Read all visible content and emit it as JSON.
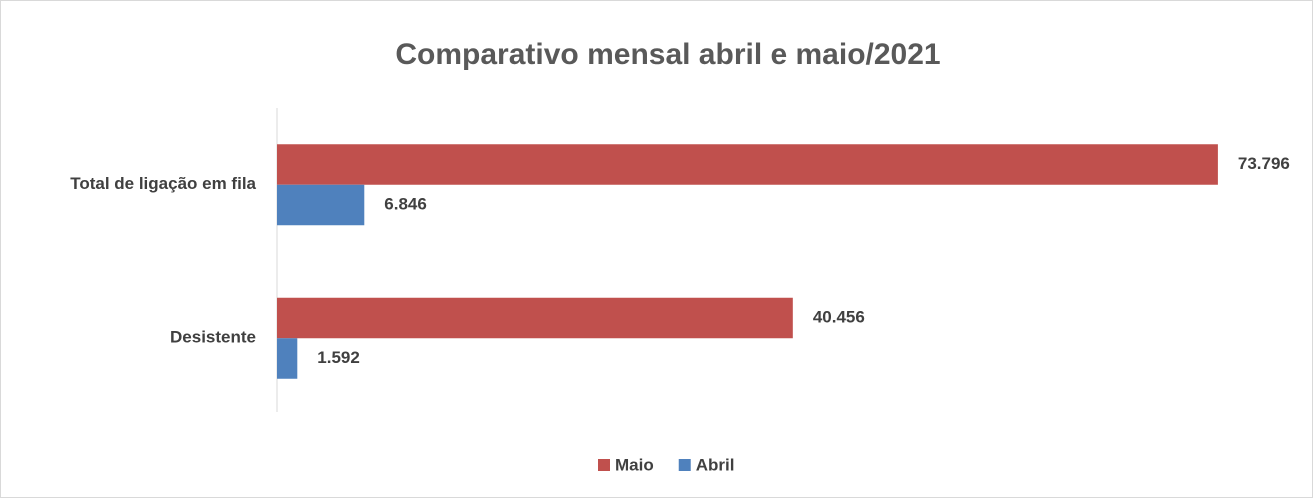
{
  "chart_data": {
    "type": "hbar",
    "title": "Comparativo mensal abril e maio/2021",
    "categories": [
      "Total de ligação em fila",
      "Desistente"
    ],
    "series": [
      {
        "name": "Maio",
        "color": "#c0504d",
        "values": [
          73796,
          40456
        ],
        "value_labels": [
          "73.796",
          "40.456"
        ]
      },
      {
        "name": "Abril",
        "color": "#4f81bd",
        "values": [
          6846,
          1592
        ],
        "value_labels": [
          "6.846",
          "1.592"
        ]
      }
    ],
    "xlim": [
      0,
      80000
    ],
    "legend": "bottom"
  }
}
